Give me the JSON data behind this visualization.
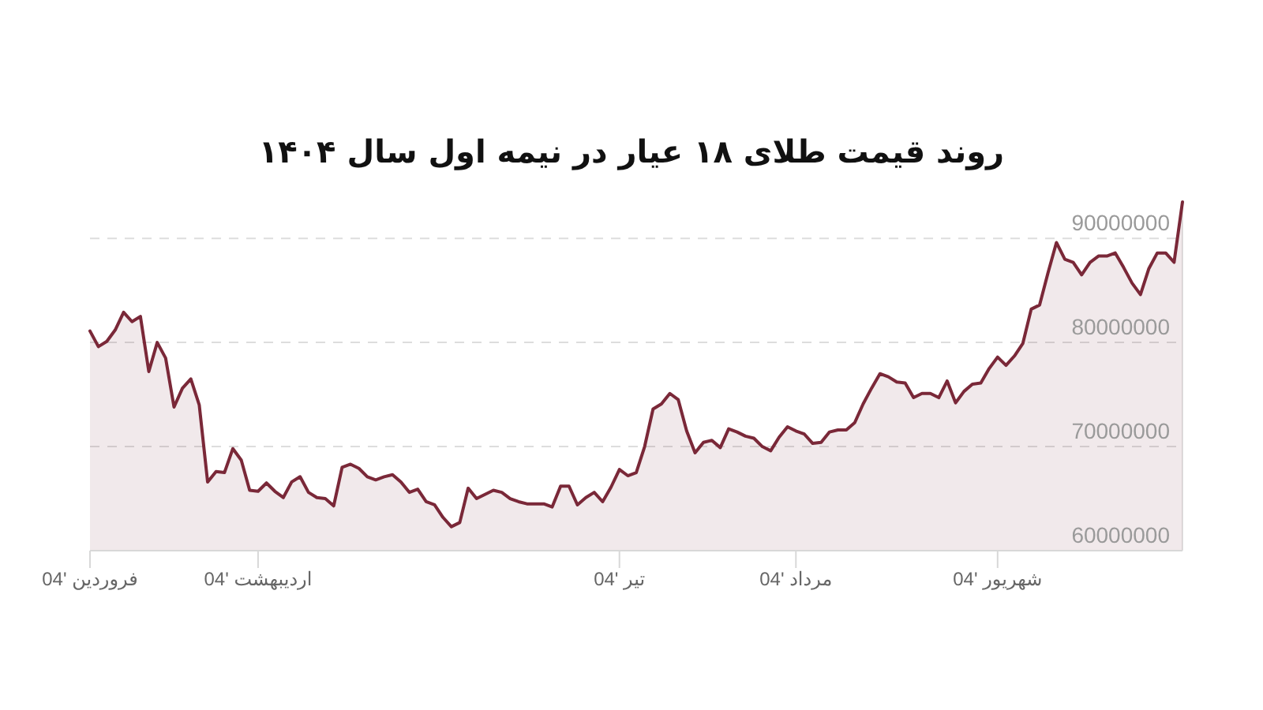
{
  "chart_data": {
    "type": "area",
    "title": "روند قیمت طلای ۱۸ عیار در نیمه اول سال ۱۴۰۴",
    "categories": [
      "فروردین '04",
      null,
      null,
      null,
      null,
      null,
      null,
      null,
      null,
      null,
      null,
      null,
      null,
      null,
      null,
      null,
      null,
      null,
      null,
      null,
      "اردیبهشت '04",
      null,
      null,
      null,
      null,
      null,
      null,
      null,
      null,
      null,
      null,
      null,
      null,
      null,
      null,
      null,
      null,
      null,
      null,
      null,
      null,
      null,
      null,
      null,
      null,
      null,
      null,
      null,
      null,
      null,
      null,
      null,
      null,
      null,
      null,
      null,
      null,
      null,
      null,
      null,
      null,
      null,
      null,
      "تیر '04",
      null,
      null,
      null,
      null,
      null,
      null,
      null,
      null,
      null,
      null,
      null,
      null,
      null,
      null,
      null,
      null,
      null,
      null,
      null,
      null,
      "مرداد '04",
      null,
      null,
      null,
      null,
      null,
      null,
      null,
      null,
      null,
      null,
      null,
      null,
      null,
      null,
      null,
      null,
      null,
      null,
      null,
      null,
      null,
      null,
      null,
      "شهریور '04",
      null,
      null,
      null,
      null,
      null,
      null,
      null,
      null,
      null,
      null,
      null,
      null,
      null,
      null,
      null,
      null,
      null,
      null,
      null,
      null,
      null,
      null
    ],
    "values": [
      81100000,
      79600000,
      80100000,
      81200000,
      82900000,
      82000000,
      82500000,
      77200000,
      80000000,
      78500000,
      73800000,
      75600000,
      76500000,
      74000000,
      66600000,
      67600000,
      67500000,
      69800000,
      68700000,
      65800000,
      65700000,
      66500000,
      65700000,
      65100000,
      66600000,
      67100000,
      65600000,
      65100000,
      65000000,
      64300000,
      68000000,
      68300000,
      67900000,
      67100000,
      66800000,
      67100000,
      67300000,
      66600000,
      65600000,
      65900000,
      64700000,
      64400000,
      63200000,
      62300000,
      62700000,
      66000000,
      65000000,
      65400000,
      65800000,
      65600000,
      65000000,
      64700000,
      64500000,
      64500000,
      64500000,
      64200000,
      66200000,
      66200000,
      64400000,
      65100000,
      65600000,
      64700000,
      66100000,
      67800000,
      67200000,
      67500000,
      70000000,
      73600000,
      74100000,
      75100000,
      74500000,
      71500000,
      69400000,
      70400000,
      70600000,
      69900000,
      71700000,
      71400000,
      71000000,
      70800000,
      70000000,
      69600000,
      70900000,
      71900000,
      71500000,
      71200000,
      70300000,
      70400000,
      71400000,
      71600000,
      71600000,
      72300000,
      74100000,
      75600000,
      77000000,
      76700000,
      76200000,
      76100000,
      74700000,
      75100000,
      75100000,
      74700000,
      76300000,
      74200000,
      75300000,
      76000000,
      76100000,
      77500000,
      78600000,
      77800000,
      78700000,
      79900000,
      83200000,
      83600000,
      86700000,
      89600000,
      88000000,
      87700000,
      86500000,
      87700000,
      88300000,
      88300000,
      88600000,
      87200000,
      85700000,
      84600000,
      87100000,
      88600000,
      88600000,
      87700000,
      93500000
    ],
    "color": "#7a2838",
    "ylim": [
      60000000,
      93500000
    ],
    "yticks": [
      60000000,
      70000000,
      80000000,
      90000000
    ],
    "grid": "y"
  }
}
